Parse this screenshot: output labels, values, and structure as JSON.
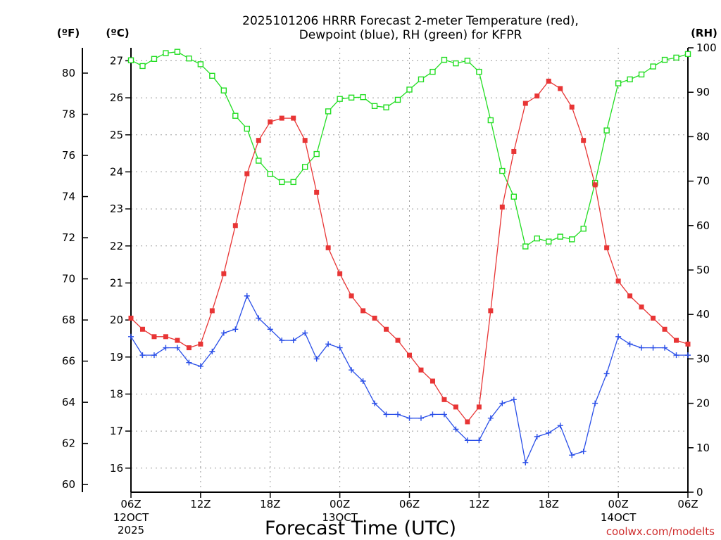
{
  "chart_data": {
    "type": "line",
    "title_line1": "2025101206 HRRR Forecast 2-meter Temperature (red),",
    "title_line2": "Dewpoint (blue), RH (green) for KFPR",
    "unit_f": "(ºF)",
    "unit_c": "(ºC)",
    "unit_rh": "(RH)",
    "xlabel": "Forecast Time (UTC)",
    "credit": "coolwx.com/modelts",
    "ylim_c": [
      15.35,
      27.35
    ],
    "ylim_rh": [
      0,
      100
    ],
    "yticks_c": [
      "16",
      "17",
      "18",
      "19",
      "20",
      "21",
      "22",
      "23",
      "24",
      "25",
      "26",
      "27"
    ],
    "yticks_f": [
      "60",
      "62",
      "64",
      "66",
      "68",
      "70",
      "72",
      "74",
      "76",
      "78",
      "80"
    ],
    "yticks_rh": [
      "0",
      "10",
      "20",
      "30",
      "40",
      "50",
      "60",
      "70",
      "80",
      "90",
      "100"
    ],
    "x_ticks": [
      {
        "hour": 0,
        "label": "06Z",
        "date": "12OCT",
        "year": "2025"
      },
      {
        "hour": 6,
        "label": "12Z"
      },
      {
        "hour": 12,
        "label": "18Z"
      },
      {
        "hour": 18,
        "label": "00Z",
        "date": "13OCT"
      },
      {
        "hour": 24,
        "label": "06Z"
      },
      {
        "hour": 30,
        "label": "12Z"
      },
      {
        "hour": 36,
        "label": "18Z"
      },
      {
        "hour": 42,
        "label": "00Z",
        "date": "14OCT"
      },
      {
        "hour": 48,
        "label": "06Z"
      }
    ],
    "series": [
      {
        "name": "Temperature",
        "unit": "C",
        "color": "#e83535",
        "marker": "filled-square",
        "values": [
          20.05,
          19.75,
          19.55,
          19.55,
          19.45,
          19.25,
          19.35,
          20.25,
          21.25,
          22.55,
          23.95,
          24.85,
          25.35,
          25.45,
          25.45,
          24.85,
          23.45,
          21.95,
          21.25,
          20.65,
          20.25,
          20.05,
          19.75,
          19.45,
          19.05,
          18.65,
          18.35,
          17.85,
          17.65,
          17.25,
          17.65,
          20.25,
          23.05,
          24.55,
          25.85,
          26.05,
          26.45,
          26.25,
          25.75,
          24.85,
          23.65,
          21.95,
          21.05,
          20.65,
          20.35,
          20.05,
          19.75,
          19.45,
          19.35
        ]
      },
      {
        "name": "Dewpoint",
        "unit": "C",
        "color": "#2a4fe8",
        "marker": "plus",
        "values": [
          19.55,
          19.05,
          19.05,
          19.25,
          19.25,
          18.85,
          18.75,
          19.15,
          19.65,
          19.75,
          20.65,
          20.05,
          19.75,
          19.45,
          19.45,
          19.65,
          18.95,
          19.35,
          19.25,
          18.65,
          18.35,
          17.75,
          17.45,
          17.45,
          17.35,
          17.35,
          17.45,
          17.45,
          17.05,
          16.75,
          16.75,
          17.35,
          17.75,
          17.85,
          16.15,
          16.85,
          16.95,
          17.15,
          16.35,
          16.45,
          17.75,
          18.55,
          19.55,
          19.35,
          19.25,
          19.25,
          19.25,
          19.05,
          19.05
        ]
      },
      {
        "name": "RH",
        "unit": "%",
        "color": "#22dd22",
        "marker": "open-square",
        "values": [
          97.2,
          95.9,
          97.5,
          98.8,
          99.1,
          97.6,
          96.3,
          93.7,
          90.4,
          84.7,
          81.8,
          74.6,
          71.6,
          69.8,
          69.8,
          73.2,
          76.1,
          85.7,
          88.5,
          88.8,
          88.9,
          86.9,
          86.6,
          88.3,
          90.6,
          92.9,
          94.6,
          97.3,
          96.5,
          97.1,
          94.6,
          83.7,
          72.3,
          66.5,
          55.3,
          57.1,
          56.4,
          57.5,
          56.9,
          59.3,
          69.6,
          81.4,
          92.0,
          92.9,
          94.0,
          95.8,
          97.3,
          97.8,
          98.6
        ]
      }
    ]
  }
}
